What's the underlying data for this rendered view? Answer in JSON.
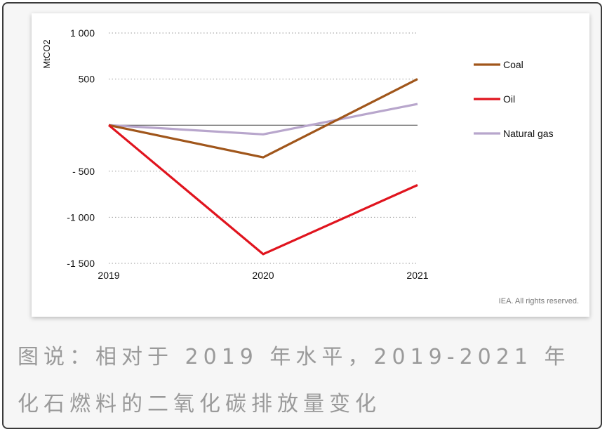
{
  "chart_data": {
    "type": "line",
    "ylabel": "MtCO2",
    "categories": [
      "2019",
      "2020",
      "2021"
    ],
    "ylim": [
      -1500,
      1000
    ],
    "yticks": [
      1000,
      500,
      0,
      -500,
      -1000,
      -1500
    ],
    "ytick_labels": [
      "1 000",
      "500",
      "",
      "- 500",
      "-1 000",
      "-1 500"
    ],
    "series": [
      {
        "name": "Coal",
        "color": "#a0561b",
        "values": [
          0,
          -350,
          500
        ]
      },
      {
        "name": "Oil",
        "color": "#e0141e",
        "values": [
          0,
          -1400,
          -650
        ]
      },
      {
        "name": "Natural gas",
        "color": "#b8a6cc",
        "values": [
          0,
          -100,
          230
        ]
      }
    ],
    "legend": "right",
    "grid": "dotted-horizontal",
    "source_note": "IEA. All rights reserved."
  },
  "caption": {
    "line1": "图说：相对于 2019 年水平，2019-2021 年",
    "line2": "化石燃料的二氧化碳排放量变化"
  }
}
